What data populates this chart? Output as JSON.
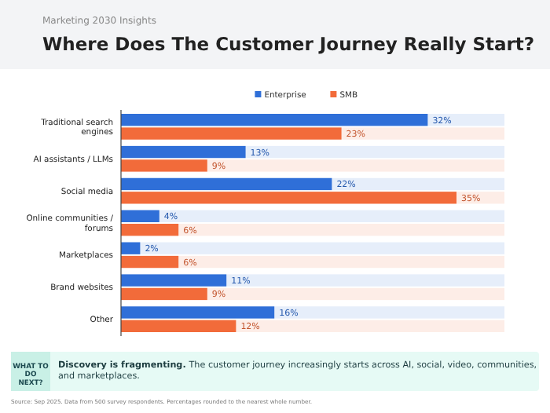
{
  "chart_data": {
    "type": "bar",
    "orientation": "horizontal",
    "title": "Where Does The Customer Journey Really Start?",
    "subtitle": "Marketing 2030 Insights",
    "categories": [
      "Traditional search engines",
      "AI assistants / LLMs",
      "Social media",
      "Online communities / forums",
      "Marketplaces",
      "Brand websites",
      "Other"
    ],
    "series": [
      {
        "name": "Enterprise",
        "color": "#2f6fd8",
        "values": [
          32,
          13,
          22,
          4,
          2,
          11,
          16
        ],
        "value_labels": [
          "32%",
          "13%",
          "22%",
          "4%",
          "2%",
          "11%",
          "16%"
        ]
      },
      {
        "name": "SMB",
        "color": "#f26b3a",
        "values": [
          23,
          9,
          35,
          6,
          6,
          9,
          12
        ],
        "value_labels": [
          "23%",
          "9%",
          "35%",
          "6%",
          "6%",
          "9%",
          "12%"
        ]
      }
    ],
    "data_labels": true,
    "legend": "top",
    "annotations": [
      "WHAT TO DO NEXT?",
      "Discovery is fragmenting.",
      "The customer journey increasingly starts across AI, social, video, communities, and marketplaces.",
      "Source: Sep 2025. Data from 500 survey respondents. Percentages rounded to the nearest whole number."
    ]
  }
}
